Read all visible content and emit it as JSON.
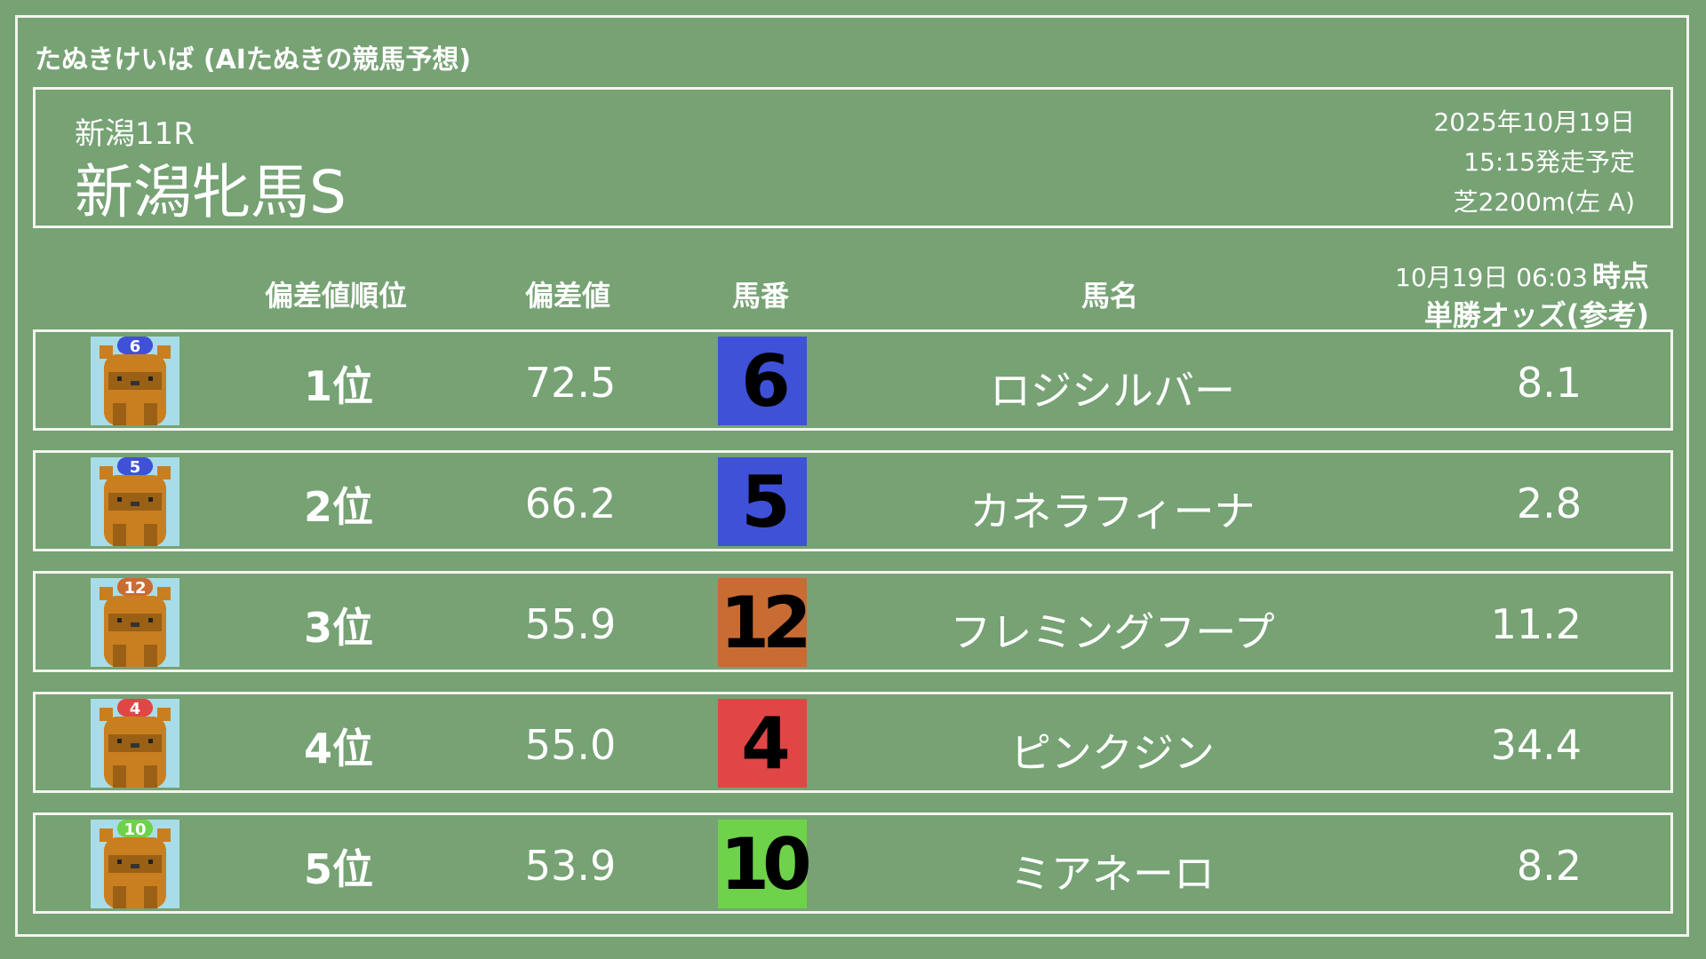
{
  "app_title": "たぬきけいば (AIたぬきの競馬予想)",
  "race": {
    "number": "新潟11R",
    "name": "新潟牝馬S",
    "date": "2025年10月19日",
    "start": "15:15発走予定",
    "course": "芝2200m(左 A)"
  },
  "columns": {
    "rank": "偏差値順位",
    "score": "偏差値",
    "horse_no": "馬番",
    "horse_name": "馬名",
    "odds_time": "10月19日 06:03",
    "odds_time_suffix": "時点",
    "odds": "単勝オッズ(参考)"
  },
  "rows": [
    {
      "rank": "1位",
      "score": "72.5",
      "no": "6",
      "name": "ロジシルバー",
      "odds": "8.1",
      "color": "#3f51d6"
    },
    {
      "rank": "2位",
      "score": "66.2",
      "no": "5",
      "name": "カネラフィーナ",
      "odds": "2.8",
      "color": "#3f51d6"
    },
    {
      "rank": "3位",
      "score": "55.9",
      "no": "12",
      "name": "フレミングフープ",
      "odds": "11.2",
      "color": "#c86c34"
    },
    {
      "rank": "4位",
      "score": "55.0",
      "no": "4",
      "name": "ピンクジン",
      "odds": "34.4",
      "color": "#e04646"
    },
    {
      "rank": "5位",
      "score": "53.9",
      "no": "10",
      "name": "ミアネーロ",
      "odds": "8.2",
      "color": "#6ed24a"
    }
  ],
  "icon": "tanuki-jockey-icon"
}
